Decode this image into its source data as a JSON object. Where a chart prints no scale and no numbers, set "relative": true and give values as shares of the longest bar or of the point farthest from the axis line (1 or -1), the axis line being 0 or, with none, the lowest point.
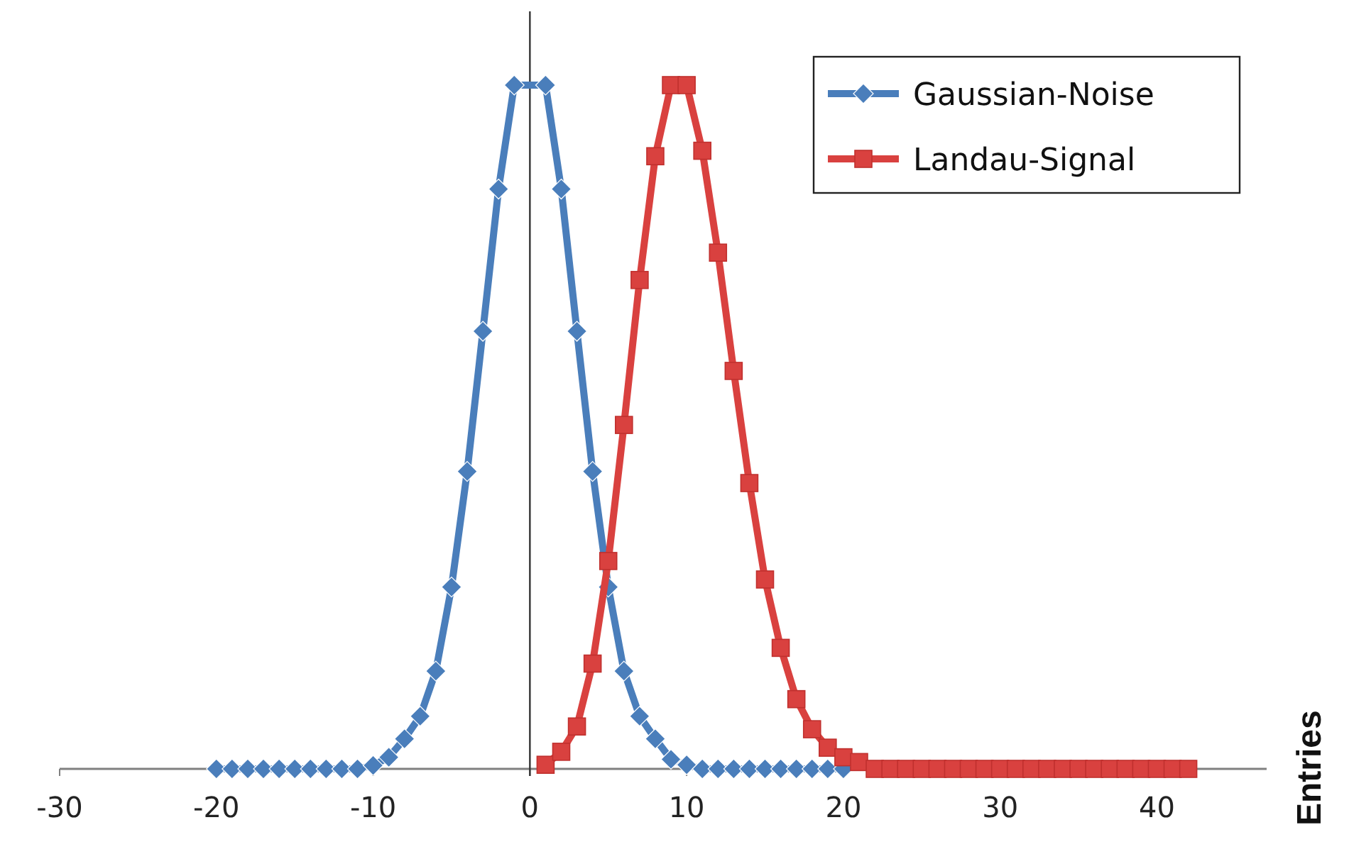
{
  "chart_data": {
    "type": "line",
    "relative": true,
    "ylabel": "Entries",
    "xlim": [
      -30,
      47
    ],
    "xticks": [
      -30,
      -20,
      -10,
      0,
      10,
      20,
      30,
      40
    ],
    "legend": "top right",
    "series": [
      {
        "name": "Gaussian-Noise",
        "color": "#4a7ebb",
        "marker": "diamond",
        "x": [
          -20,
          -19,
          -18,
          -17,
          -16,
          -15,
          -14,
          -13,
          -12,
          -11,
          -10,
          -9,
          -8,
          -7,
          -6,
          -5,
          -4,
          -3,
          -2,
          -1,
          1,
          2,
          3,
          4,
          5,
          6,
          7,
          8,
          9,
          10,
          11,
          12,
          13,
          14,
          15,
          16,
          17,
          18,
          19,
          20
        ],
        "values": [
          0,
          0,
          0,
          0,
          0,
          0,
          0,
          0,
          0,
          0,
          0.005,
          0.017,
          0.044,
          0.077,
          0.143,
          0.266,
          0.435,
          0.64,
          0.848,
          1,
          1,
          0.848,
          0.64,
          0.435,
          0.266,
          0.143,
          0.077,
          0.044,
          0.014,
          0.006,
          0,
          0,
          0,
          0,
          0,
          0,
          0,
          0,
          0,
          0
        ]
      },
      {
        "name": "Landau-Signal",
        "color": "#d9413f",
        "marker": "square",
        "x": [
          1,
          2,
          3,
          4,
          5,
          6,
          7,
          8,
          9,
          10,
          11,
          12,
          13,
          14,
          15,
          16,
          17,
          18,
          19,
          20,
          21,
          22,
          23,
          24,
          25,
          26,
          27,
          28,
          29,
          30,
          31,
          32,
          33,
          34,
          35,
          36,
          37,
          38,
          39,
          40,
          41,
          42
        ],
        "values": [
          0.006,
          0.025,
          0.062,
          0.154,
          0.304,
          0.503,
          0.715,
          0.896,
          1,
          1,
          0.904,
          0.755,
          0.582,
          0.418,
          0.277,
          0.177,
          0.102,
          0.058,
          0.031,
          0.017,
          0.01,
          0,
          0,
          0,
          0,
          0,
          0,
          0,
          0,
          0,
          0,
          0,
          0,
          0,
          0,
          0,
          0,
          0,
          0,
          0,
          0,
          0
        ]
      }
    ]
  }
}
